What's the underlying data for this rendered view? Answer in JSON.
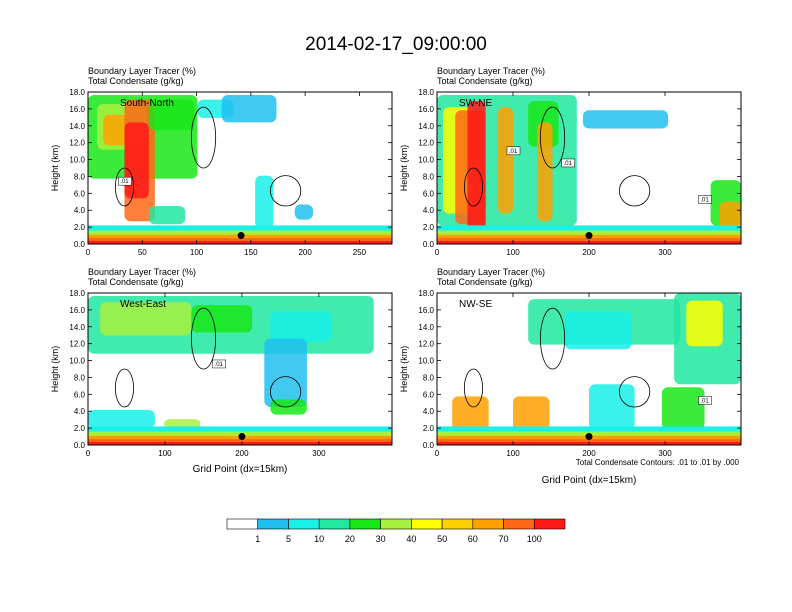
{
  "title": "2014-02-17_09:00:00",
  "colors": {
    "levels": [
      "#ffffff",
      "#2b8cf0",
      "#20bff0",
      "#18f0e8",
      "#20e8a0",
      "#18e818",
      "#a8f040",
      "#ffff00",
      "#ffd000",
      "#ffa000",
      "#ff6818",
      "#ff1818"
    ],
    "contour": "#000000",
    "marker": "#000000"
  },
  "colorbar": {
    "labels": [
      "1",
      "5",
      "10",
      "20",
      "30",
      "40",
      "50",
      "60",
      "70",
      "100"
    ]
  },
  "contour_note": "Total Condensate Contours: .01 to .01 by .000",
  "chart_data": [
    {
      "type": "heatmap",
      "name": "South-North",
      "subtitle1": "Boundary Layer Tracer    (%)",
      "subtitle2": "Total Condensate   (g/kg)",
      "ylabel": "Height (km)",
      "xlabel": "",
      "xlim": [
        0,
        280
      ],
      "ylim": [
        0,
        18
      ],
      "xticks": [
        "0",
        "50",
        "100",
        "150",
        "200",
        "250"
      ],
      "yticks": [
        "0.0",
        "2.0",
        "4.0",
        "6.0",
        "8.0",
        "10.0",
        "12.0",
        "14.0",
        "16.0",
        "18.0"
      ],
      "contour_labels": [
        ".01"
      ],
      "marker": [
        141,
        1.0
      ]
    },
    {
      "type": "heatmap",
      "name": "SW-NE",
      "subtitle1": "Boundary Layer Tracer    (%)",
      "subtitle2": "Total Condensate   (g/kg)",
      "ylabel": "Height (km)",
      "xlabel": "",
      "xlim": [
        0,
        400
      ],
      "ylim": [
        0,
        18
      ],
      "xticks": [
        "0",
        "100",
        "200",
        "300"
      ],
      "yticks": [
        "0.0",
        "2.0",
        "4.0",
        "6.0",
        "8.0",
        "10.0",
        "12.0",
        "14.0",
        "16.0",
        "18.0"
      ],
      "contour_labels": [
        ".01",
        ".01",
        ".01"
      ],
      "marker": [
        200,
        1.0
      ]
    },
    {
      "type": "heatmap",
      "name": "West-East",
      "subtitle1": "Boundary Layer Tracer    (%)",
      "subtitle2": "Total Condensate   (g/kg)",
      "ylabel": "Height (km)",
      "xlabel": "Grid Point (dx=15km)",
      "xlim": [
        0,
        395
      ],
      "ylim": [
        0,
        18
      ],
      "xticks": [
        "0",
        "100",
        "200",
        "300"
      ],
      "yticks": [
        "0.0",
        "2.0",
        "4.0",
        "6.0",
        "8.0",
        "10.0",
        "12.0",
        "14.0",
        "16.0",
        "18.0"
      ],
      "contour_labels": [
        ".01"
      ],
      "marker": [
        200,
        1.0
      ]
    },
    {
      "type": "heatmap",
      "name": "NW-SE",
      "subtitle1": "Boundary Layer Tracer    (%)",
      "subtitle2": "Total Condensate   (g/kg)",
      "ylabel": "Height (km)",
      "xlabel": "Grid Point (dx=15km)",
      "xlim": [
        0,
        400
      ],
      "ylim": [
        0,
        18
      ],
      "xticks": [
        "0",
        "100",
        "200",
        "300"
      ],
      "yticks": [
        "0.0",
        "2.0",
        "4.0",
        "6.0",
        "8.0",
        "10.0",
        "12.0",
        "14.0",
        "16.0",
        "18.0"
      ],
      "contour_labels": [
        ".01"
      ],
      "marker": [
        200,
        1.0
      ]
    }
  ]
}
